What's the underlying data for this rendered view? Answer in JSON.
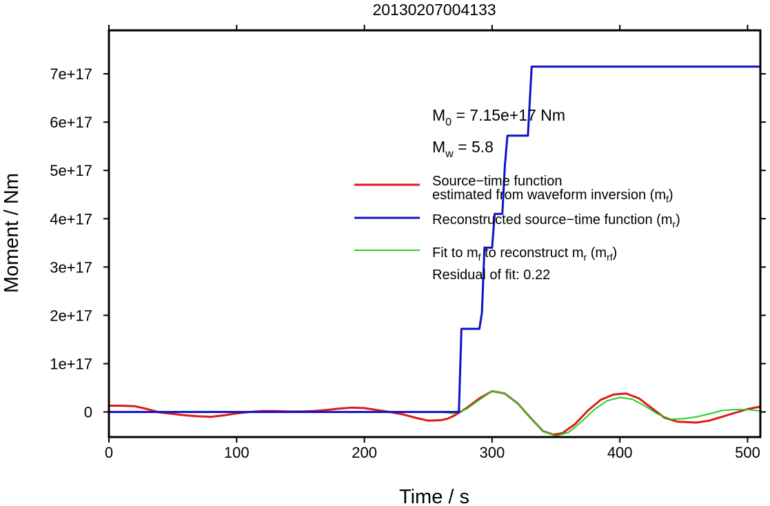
{
  "chart_data": {
    "type": "line",
    "title": "20130207004133",
    "xlabel": "Time / s",
    "ylabel": "Moment / Nm",
    "xlim": [
      0,
      510
    ],
    "ylim": [
      -5.2e+16,
      7.9e+17
    ],
    "x_ticks": [
      0,
      100,
      200,
      300,
      400,
      500
    ],
    "x_tick_labels": [
      "0",
      "100",
      "200",
      "300",
      "400",
      "500"
    ],
    "y_ticks": [
      0,
      1e+17,
      2e+17,
      3e+17,
      4e+17,
      5e+17,
      6e+17,
      7e+17
    ],
    "y_tick_labels": [
      "0",
      "1e+17",
      "2e+17",
      "3e+17",
      "4e+17",
      "5e+17",
      "6e+17",
      "7e+17"
    ],
    "grid": false,
    "legend_position": "right",
    "annotations": {
      "m0": {
        "sym": "M",
        "sub": "0",
        "text": " = 7.15e+17 Nm"
      },
      "mw": {
        "sym": "M",
        "sub": "w",
        "text": " = 5.8"
      },
      "residual": "Residual of fit: 0.22"
    },
    "series": [
      {
        "id": "mf",
        "color": "#e01818",
        "label_line1": "Source−time function",
        "label_pre": "estimated from waveform inversion (m",
        "label_sub": "f",
        "label_post": ")",
        "points": [
          [
            0,
            1.3e+16
          ],
          [
            10,
            1.3e+16
          ],
          [
            20,
            1.2e+16
          ],
          [
            30,
            6000000000000000.0
          ],
          [
            40,
            -1000000000000000.0
          ],
          [
            50,
            -4000000000000000.0
          ],
          [
            60,
            -7000000000000000.0
          ],
          [
            70,
            -9000000000000000.0
          ],
          [
            80,
            -1e+16
          ],
          [
            90,
            -7000000000000000.0
          ],
          [
            100,
            -3000000000000000.0
          ],
          [
            110,
            0
          ],
          [
            120,
            2000000000000000.0
          ],
          [
            130,
            2000000000000000.0
          ],
          [
            140,
            1000000000000000.0
          ],
          [
            150,
            1000000000000000.0
          ],
          [
            160,
            2000000000000000.0
          ],
          [
            170,
            4000000000000000.0
          ],
          [
            180,
            7000000000000000.0
          ],
          [
            190,
            9000000000000000.0
          ],
          [
            200,
            8000000000000000.0
          ],
          [
            210,
            4000000000000000.0
          ],
          [
            220,
            0
          ],
          [
            230,
            -5000000000000000.0
          ],
          [
            240,
            -1.2e+16
          ],
          [
            250,
            -1.8e+16
          ],
          [
            260,
            -1.7e+16
          ],
          [
            265,
            -1.4e+16
          ],
          [
            270,
            -8000000000000000.0
          ],
          [
            280,
            8000000000000000.0
          ],
          [
            290,
            2.8e+16
          ],
          [
            300,
            4.3e+16
          ],
          [
            310,
            3.8e+16
          ],
          [
            320,
            1.8e+16
          ],
          [
            330,
            -1.2e+16
          ],
          [
            340,
            -4e+16
          ],
          [
            348,
            -4.7e+16
          ],
          [
            355,
            -4.4e+16
          ],
          [
            365,
            -2.5e+16
          ],
          [
            375,
            3000000000000000.0
          ],
          [
            385,
            2.5e+16
          ],
          [
            395,
            3.6e+16
          ],
          [
            405,
            3.8e+16
          ],
          [
            415,
            2.8e+16
          ],
          [
            425,
            8000000000000000.0
          ],
          [
            435,
            -1.2e+16
          ],
          [
            445,
            -2e+16
          ],
          [
            460,
            -2.2e+16
          ],
          [
            470,
            -1.8e+16
          ],
          [
            480,
            -1e+16
          ],
          [
            490,
            -2000000000000000.0
          ],
          [
            500,
            6000000000000000.0
          ],
          [
            510,
            1.1e+16
          ]
        ]
      },
      {
        "id": "mr",
        "color": "#1010c8",
        "label_pre": "Reconstructed source−time function (m",
        "label_sub": "r",
        "label_post": ")",
        "points": [
          [
            0,
            0
          ],
          [
            274,
            0
          ],
          [
            276,
            1.72e+17
          ],
          [
            290,
            1.72e+17
          ],
          [
            292,
            2.05e+17
          ],
          [
            294,
            3.4e+17
          ],
          [
            300,
            3.4e+17
          ],
          [
            302,
            4.1e+17
          ],
          [
            308,
            4.1e+17
          ],
          [
            310,
            5.1e+17
          ],
          [
            312,
            5.72e+17
          ],
          [
            328,
            5.72e+17
          ],
          [
            331,
            7.15e+17
          ],
          [
            510,
            7.15e+17
          ]
        ]
      },
      {
        "id": "mrf",
        "color": "#22d022",
        "label_pre": "Fit to m",
        "label_sub": "f",
        "label_mid": " to reconstruct m",
        "label_sub2": "r",
        "label_mid2": " (m",
        "label_sub3": "rf",
        "label_post": ")",
        "points": [
          [
            0,
            0
          ],
          [
            260,
            0
          ],
          [
            270,
            -3000000000000000.0
          ],
          [
            280,
            6000000000000000.0
          ],
          [
            290,
            2.5e+16
          ],
          [
            300,
            4.3e+16
          ],
          [
            310,
            3.8e+16
          ],
          [
            320,
            1.8e+16
          ],
          [
            330,
            -1.2e+16
          ],
          [
            340,
            -4e+16
          ],
          [
            350,
            -5e+16
          ],
          [
            360,
            -4.2e+16
          ],
          [
            370,
            -2e+16
          ],
          [
            380,
            5000000000000000.0
          ],
          [
            390,
            2.3e+16
          ],
          [
            400,
            3e+16
          ],
          [
            410,
            2.6e+16
          ],
          [
            420,
            1.2e+16
          ],
          [
            430,
            -5000000000000000.0
          ],
          [
            440,
            -1.5e+16
          ],
          [
            450,
            -1.4e+16
          ],
          [
            460,
            -1e+16
          ],
          [
            470,
            -4000000000000000.0
          ],
          [
            480,
            3000000000000000.0
          ],
          [
            490,
            5000000000000000.0
          ],
          [
            500,
            5000000000000000.0
          ],
          [
            510,
            2000000000000000.0
          ]
        ]
      }
    ]
  }
}
